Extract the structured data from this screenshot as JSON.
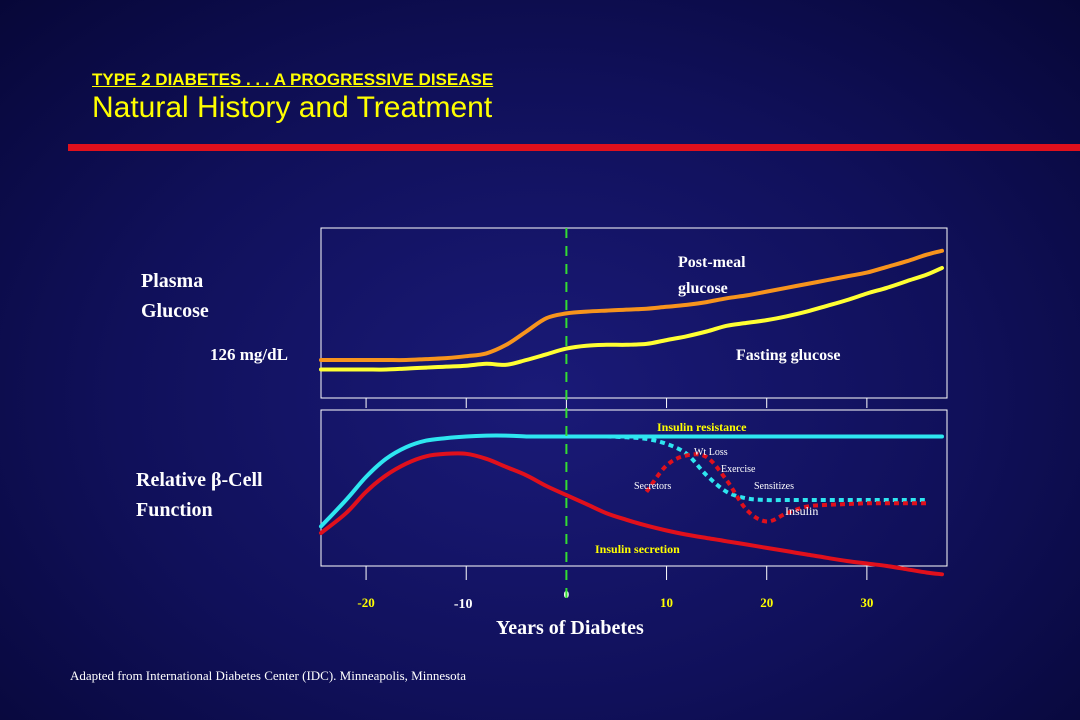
{
  "slide": {
    "supertitle": "TYPE 2 DIABETES . . . A PROGRESSIVE DISEASE",
    "title": "Natural History and Treatment",
    "credit": "Adapted from International Diabetes Center (IDC). Minneapolis, Minnesota"
  },
  "colors": {
    "background": "#10105a",
    "title": "#ffff00",
    "rule": "#e0101c",
    "post_meal": "#f7941d",
    "fasting": "#ffff33",
    "insulin_resistance": "#2ee6f0",
    "insulin_secretion": "#e0101c",
    "vline": "#33dd33"
  },
  "chart_data": [
    {
      "type": "line",
      "ylabel": "Plasma Glucose",
      "threshold_label": "126 mg/dL",
      "x": [
        -24.5,
        -22,
        -20,
        -18,
        -16,
        -14,
        -12,
        -10,
        -8,
        -6,
        -4,
        -2,
        0,
        2,
        4,
        6,
        8,
        10,
        12,
        14,
        16,
        18,
        20,
        22,
        24,
        26,
        28,
        30,
        32,
        34,
        36,
        37.5
      ],
      "series": [
        {
          "name": "Post-meal glucose",
          "values": [
            2.0,
            2.0,
            2.0,
            2.0,
            2.0,
            2.05,
            2.1,
            2.2,
            2.35,
            2.8,
            3.5,
            4.2,
            4.45,
            4.55,
            4.6,
            4.65,
            4.7,
            4.8,
            4.9,
            5.05,
            5.25,
            5.4,
            5.6,
            5.8,
            6.0,
            6.2,
            6.4,
            6.6,
            6.9,
            7.2,
            7.55,
            7.75
          ]
        },
        {
          "name": "Fasting glucose",
          "values": [
            1.5,
            1.5,
            1.5,
            1.5,
            1.55,
            1.6,
            1.65,
            1.7,
            1.8,
            1.75,
            2.0,
            2.3,
            2.6,
            2.75,
            2.8,
            2.8,
            2.85,
            3.05,
            3.25,
            3.5,
            3.8,
            3.95,
            4.1,
            4.3,
            4.55,
            4.85,
            5.15,
            5.5,
            5.8,
            6.15,
            6.5,
            6.85
          ]
        }
      ]
    },
    {
      "type": "line",
      "ylabel": "Relative β-Cell Function",
      "xlabel": "Years of Diabetes",
      "xticks": [
        -20,
        -10,
        0,
        10,
        20,
        30
      ],
      "xlim": [
        -24.5,
        38
      ],
      "annotations": [
        "Wt Loss",
        "Exercise",
        "Sensitizes",
        "Secretors",
        "Insulin"
      ],
      "x": [
        -24.5,
        -22,
        -20,
        -18,
        -16,
        -14,
        -12,
        -10,
        -8,
        -6,
        -4,
        -2,
        0,
        2,
        4,
        6,
        8,
        10,
        12,
        14,
        16,
        18,
        20,
        22,
        24,
        26,
        28,
        30,
        32,
        34,
        36,
        37.5
      ],
      "series": [
        {
          "name": "Insulin resistance",
          "values": [
            2.4,
            4.0,
            5.4,
            6.5,
            7.2,
            7.6,
            7.75,
            7.85,
            7.9,
            7.9,
            7.85,
            7.85,
            7.85,
            7.85,
            7.85,
            7.85,
            7.85,
            7.85,
            7.85,
            7.85,
            7.85,
            7.85,
            7.85,
            7.85,
            7.85,
            7.85,
            7.85,
            7.85,
            7.85,
            7.85,
            7.85,
            7.85
          ]
        },
        {
          "name": "Insulin secretion",
          "values": [
            2.0,
            3.2,
            4.5,
            5.5,
            6.2,
            6.65,
            6.8,
            6.8,
            6.5,
            6.0,
            5.5,
            4.85,
            4.3,
            3.75,
            3.2,
            2.8,
            2.45,
            2.15,
            1.9,
            1.7,
            1.5,
            1.3,
            1.1,
            0.9,
            0.7,
            0.5,
            0.3,
            0.15,
            0.0,
            -0.2,
            -0.4,
            -0.5
          ]
        }
      ],
      "treatment_curves": [
        {
          "x": [
            4,
            6,
            8,
            10,
            12,
            14,
            16,
            18,
            20,
            22,
            24,
            26,
            28,
            30,
            32,
            34,
            36
          ],
          "values": [
            7.85,
            7.8,
            7.7,
            7.4,
            6.8,
            5.5,
            4.5,
            4.1,
            4.0,
            4.0,
            4.0,
            4.0,
            4.0,
            4.0,
            4.0,
            4.0,
            4.0
          ]
        },
        {
          "x": [
            8,
            10,
            12,
            14,
            16,
            18,
            20,
            22,
            24,
            26,
            28,
            30,
            32,
            34,
            36
          ],
          "values": [
            4.5,
            6.1,
            6.7,
            6.6,
            5.2,
            3.4,
            2.7,
            3.2,
            3.6,
            3.7,
            3.75,
            3.8,
            3.8,
            3.8,
            3.8
          ]
        }
      ],
      "labels": {
        "post_meal_line1": "Post-meal",
        "post_meal_line2": "glucose",
        "fasting": "Fasting glucose",
        "resistance": "Insulin resistance",
        "secretion": "Insulin secretion"
      }
    }
  ]
}
